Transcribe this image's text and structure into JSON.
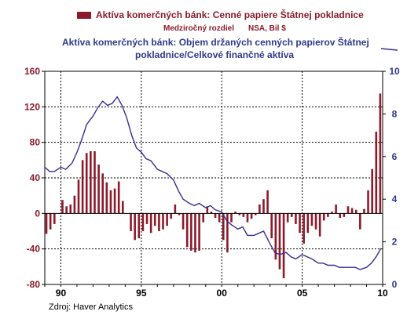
{
  "chart_data": {
    "type": "bar+line",
    "legend": {
      "bar_label": "Aktíva komerčných bánk: Cenné papiere Štátnej pokladnice",
      "bar_sublabel": "Medziročný rozdiel",
      "bar_units": "NSA, Bil $",
      "line_label_1": "Aktíva komerčných bánk: Objem držaných cenných papierov Štátnej",
      "line_label_2": "pokladnice/Celkové finančné aktíva"
    },
    "source": "Zdroj: Haver Analytics",
    "x_ticks": [
      "90",
      "95",
      "00",
      "05",
      "10"
    ],
    "x_range": [
      1989.0,
      2010.0
    ],
    "left_axis": {
      "ylim": [
        -80,
        160
      ],
      "ticks": [
        "160",
        "120",
        "80",
        "40",
        "0",
        "-40",
        "-80"
      ]
    },
    "right_axis": {
      "ylim": [
        0,
        10
      ],
      "ticks": [
        "10",
        "8",
        "6",
        "4",
        "2",
        "0"
      ]
    },
    "bar_color": "#8b1a2b",
    "line_color": "#3a2d8c",
    "bars": {
      "x": [
        1989.1,
        1989.35,
        1989.6,
        1989.85,
        1990.1,
        1990.35,
        1990.6,
        1990.85,
        1991.1,
        1991.35,
        1991.6,
        1991.85,
        1992.1,
        1992.35,
        1992.6,
        1992.85,
        1993.1,
        1993.35,
        1993.6,
        1993.85,
        1994.1,
        1994.35,
        1994.6,
        1994.85,
        1995.1,
        1995.35,
        1995.6,
        1995.85,
        1996.1,
        1996.35,
        1996.6,
        1996.85,
        1997.1,
        1997.35,
        1997.6,
        1997.85,
        1998.1,
        1998.35,
        1998.6,
        1998.85,
        1999.1,
        1999.35,
        1999.6,
        1999.85,
        2000.1,
        2000.35,
        2000.6,
        2000.85,
        2001.1,
        2001.35,
        2001.6,
        2001.85,
        2002.1,
        2002.35,
        2002.6,
        2002.85,
        2003.1,
        2003.35,
        2003.6,
        2003.85,
        2004.1,
        2004.35,
        2004.6,
        2004.85,
        2005.1,
        2005.35,
        2005.6,
        2005.85,
        2006.1,
        2006.35,
        2006.6,
        2006.85,
        2007.1,
        2007.35,
        2007.6,
        2007.85,
        2008.1,
        2008.35,
        2008.6,
        2008.85,
        2009.1,
        2009.35,
        2009.6,
        2009.85
      ],
      "values": [
        -23,
        -18,
        -12,
        0,
        15,
        8,
        10,
        20,
        38,
        60,
        68,
        70,
        70,
        55,
        45,
        35,
        26,
        28,
        36,
        14,
        0,
        -20,
        -30,
        -28,
        -20,
        -12,
        -22,
        -14,
        -20,
        -18,
        -14,
        -6,
        10,
        -2,
        -18,
        -38,
        -42,
        -44,
        -42,
        -10,
        8,
        2,
        -5,
        -10,
        -30,
        -44,
        -10,
        2,
        -2,
        -4,
        -10,
        -6,
        -2,
        10,
        16,
        26,
        -28,
        -52,
        -63,
        -73,
        -10,
        -4,
        -12,
        -22,
        -34,
        -22,
        -14,
        -18,
        -26,
        -8,
        -4,
        2,
        10,
        -5,
        -4,
        8,
        6,
        4,
        -18,
        5,
        26,
        50,
        92,
        135
      ]
    },
    "line": {
      "x": [
        1989.0,
        1989.3,
        1989.6,
        1990.0,
        1990.3,
        1990.7,
        1991.0,
        1991.3,
        1991.6,
        1992.0,
        1992.3,
        1992.6,
        1992.9,
        1993.2,
        1993.5,
        1993.8,
        1994.1,
        1994.4,
        1994.7,
        1995.0,
        1995.3,
        1995.6,
        1996.0,
        1996.3,
        1996.6,
        1997.0,
        1997.3,
        1997.6,
        1998.0,
        1998.3,
        1998.6,
        1999.0,
        1999.3,
        1999.6,
        2000.0,
        2000.3,
        2000.6,
        2001.0,
        2001.3,
        2001.6,
        2002.0,
        2002.3,
        2002.6,
        2003.0,
        2003.3,
        2003.6,
        2004.0,
        2004.3,
        2004.6,
        2005.0,
        2005.3,
        2005.6,
        2006.0,
        2006.3,
        2006.6,
        2007.0,
        2007.3,
        2007.6,
        2008.0,
        2008.3,
        2008.6,
        2009.0,
        2009.3,
        2009.6,
        2009.9
      ],
      "values": [
        5.5,
        5.3,
        5.3,
        5.5,
        5.4,
        5.7,
        6.2,
        6.8,
        7.5,
        7.9,
        8.3,
        8.6,
        8.4,
        8.5,
        8.8,
        8.4,
        7.8,
        7.0,
        6.4,
        6.2,
        5.9,
        5.8,
        5.4,
        5.3,
        5.2,
        4.9,
        4.4,
        4.0,
        3.8,
        3.7,
        3.8,
        3.6,
        3.7,
        3.5,
        3.4,
        3.0,
        2.8,
        2.6,
        2.7,
        2.3,
        2.3,
        2.4,
        2.5,
        1.9,
        1.5,
        1.4,
        1.5,
        1.3,
        1.2,
        1.4,
        1.3,
        1.2,
        1.0,
        1.0,
        0.9,
        0.9,
        0.8,
        0.8,
        0.8,
        0.8,
        0.7,
        0.8,
        1.0,
        1.3,
        1.7
      ]
    }
  }
}
